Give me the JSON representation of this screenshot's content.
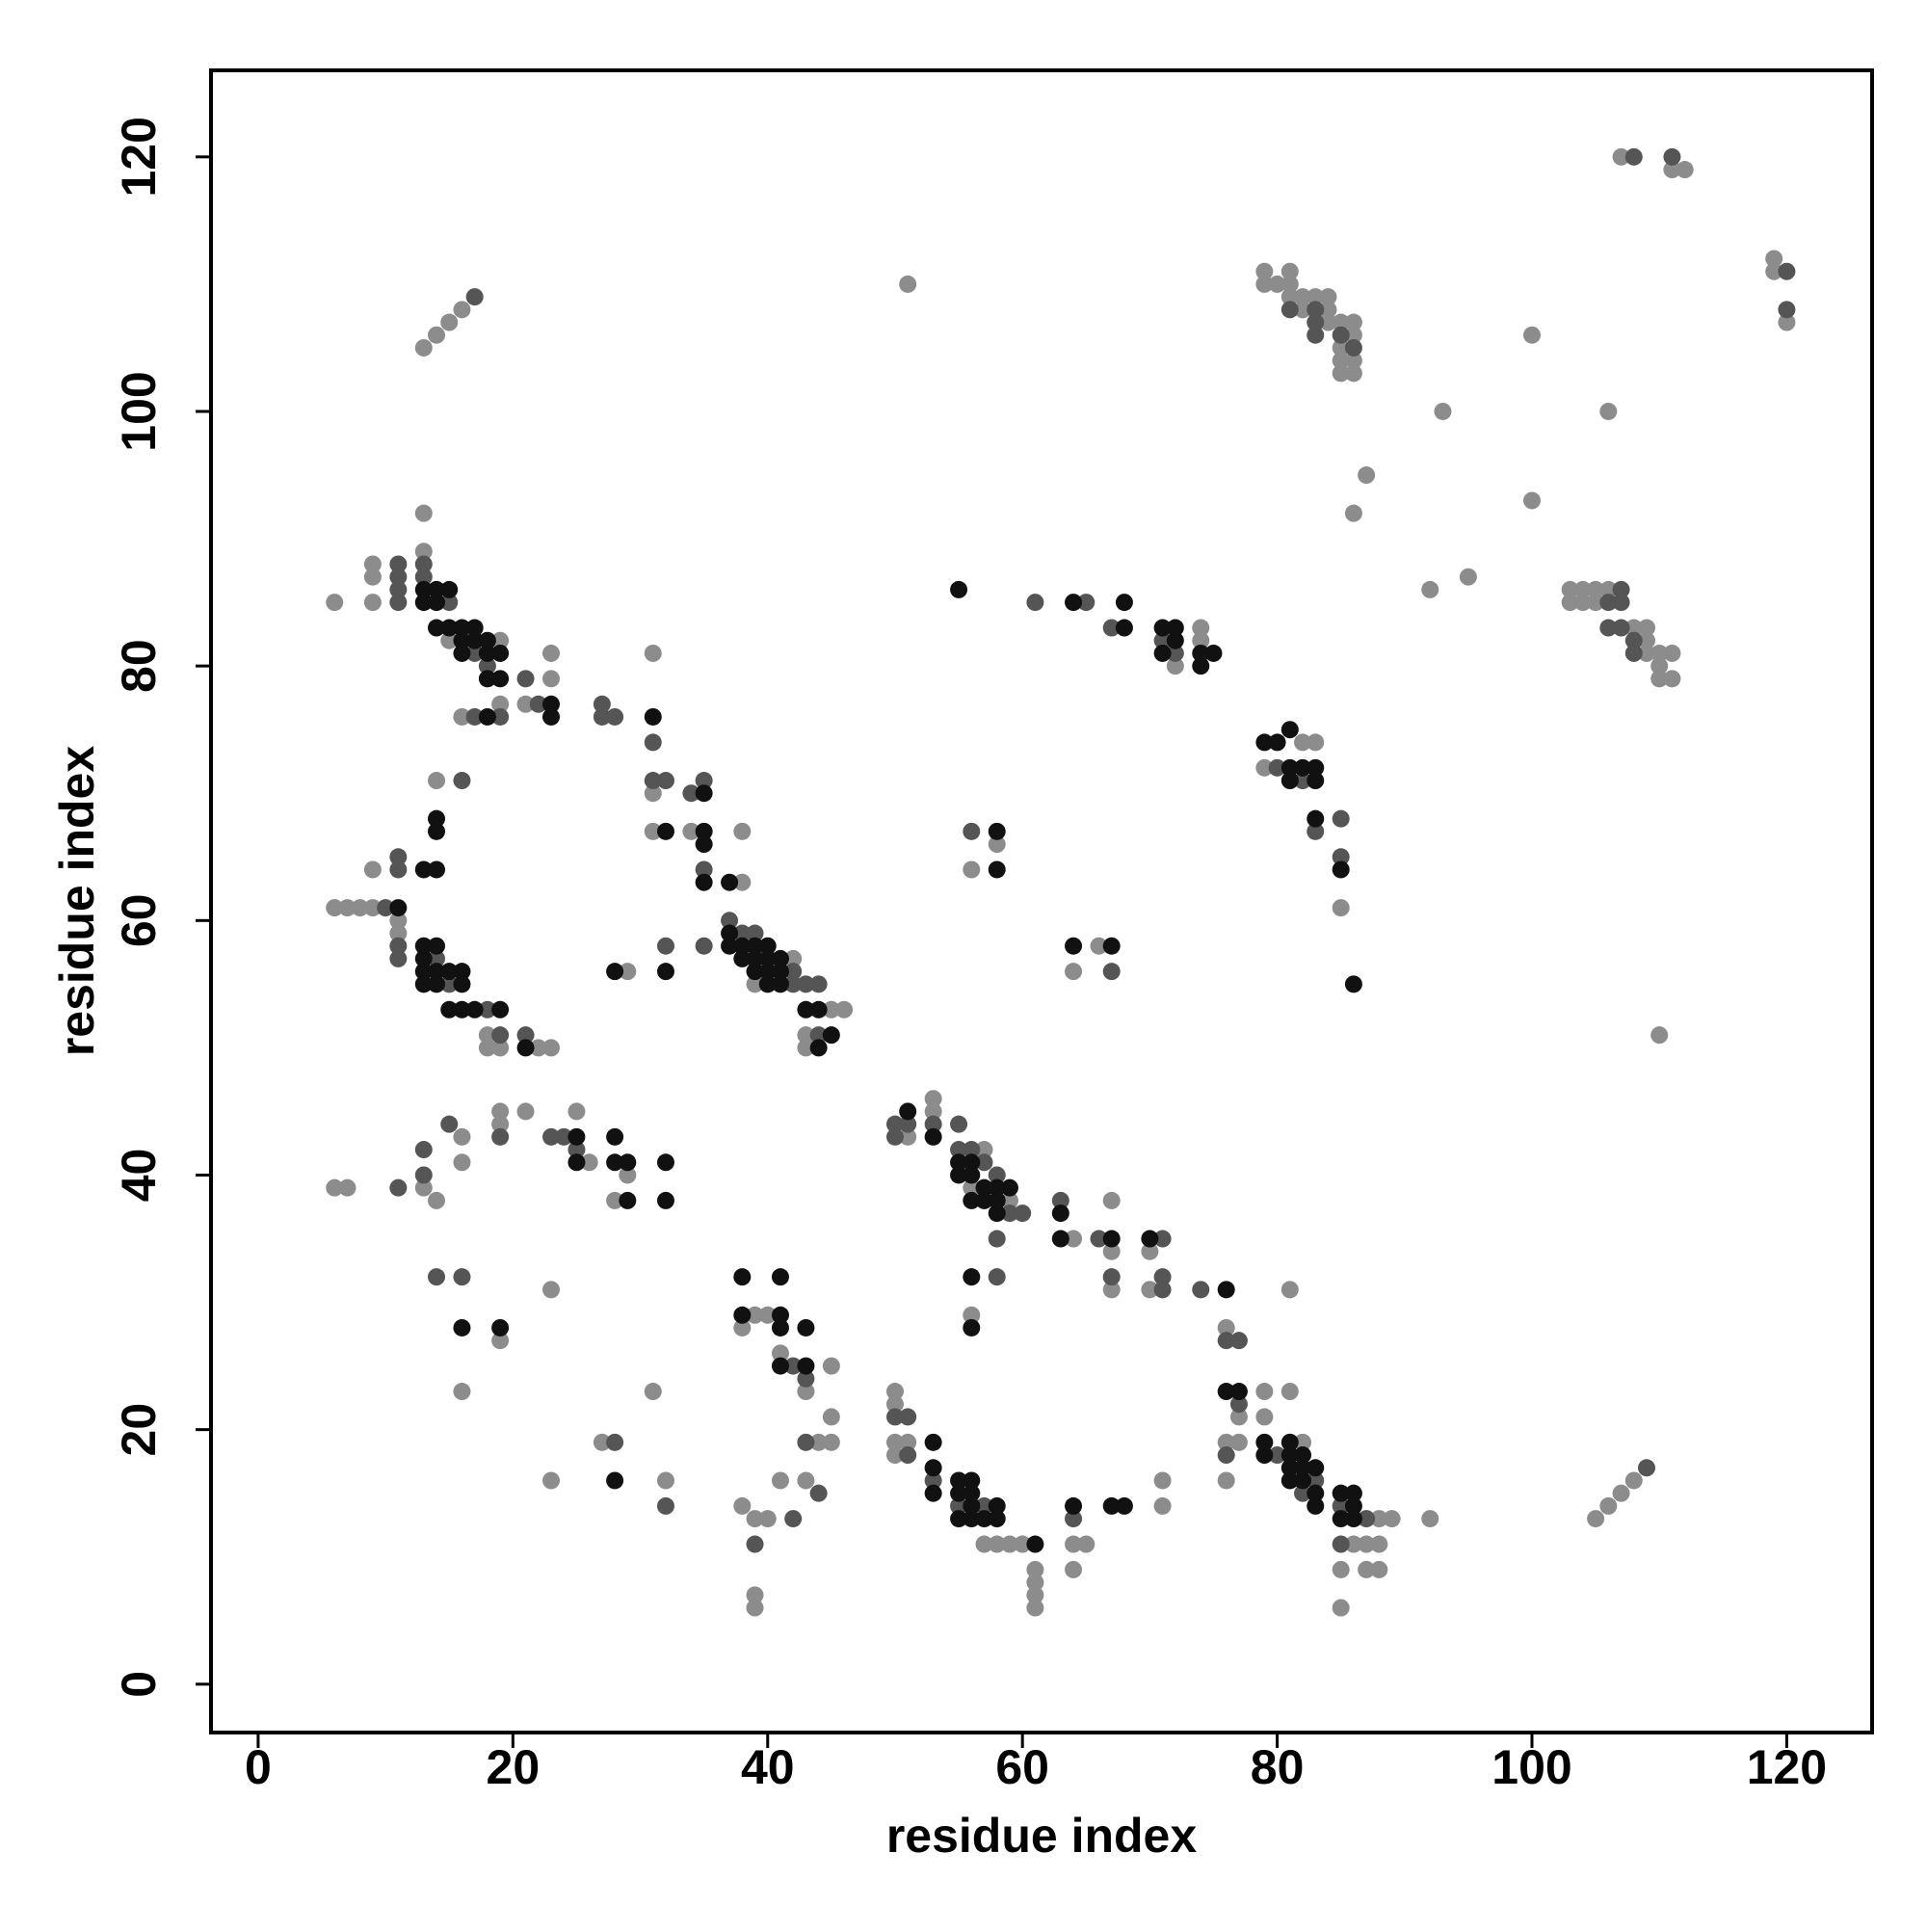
{
  "chart_data": {
    "type": "scatter",
    "xlabel": "residue index",
    "ylabel": "residue index",
    "xlim": [
      -3.7,
      126.7
    ],
    "ylim": [
      -3.8,
      126.8
    ],
    "xticks": [
      0,
      20,
      40,
      60,
      80,
      100,
      120
    ],
    "yticks": [
      0,
      20,
      40,
      60,
      80,
      100,
      120
    ],
    "grid": false,
    "series": [
      {
        "color": "#8c8c8c",
        "x": [
          13,
          14,
          15,
          16,
          13,
          6,
          9,
          9,
          9,
          13,
          15,
          19,
          16,
          19,
          21,
          23,
          23,
          31,
          31,
          31,
          34,
          38,
          38,
          14,
          9,
          6,
          7,
          8,
          9,
          11,
          11,
          18,
          18,
          19,
          22,
          23,
          29,
          42,
          39,
          45,
          46,
          43,
          43,
          6,
          7,
          13,
          14,
          16,
          16,
          19,
          19,
          21,
          25,
          26,
          28,
          29,
          19,
          23,
          16,
          23,
          27,
          31,
          32,
          39,
          40,
          38,
          41,
          43,
          45,
          45,
          44,
          45,
          38,
          39,
          40,
          39,
          39,
          41,
          43,
          51,
          53,
          53,
          57,
          56,
          59,
          64,
          67,
          67,
          70,
          67,
          70,
          56,
          72,
          74,
          74,
          51,
          58,
          56,
          66,
          64,
          82,
          83,
          79,
          85,
          79,
          80,
          81,
          79,
          81,
          81,
          82,
          83,
          82,
          84,
          84,
          84,
          85,
          86,
          86,
          85,
          85,
          86,
          85,
          86,
          87,
          86,
          93,
          100,
          100,
          92,
          95,
          106,
          110,
          103,
          104,
          105,
          106,
          103,
          104,
          105,
          108,
          109,
          109,
          109,
          110,
          111,
          110,
          110,
          111,
          107,
          111,
          112,
          119,
          119,
          120,
          50,
          50,
          50,
          51,
          50,
          57,
          58,
          59,
          60,
          61,
          61,
          61,
          61,
          64,
          65,
          64,
          71,
          71,
          76,
          77,
          76,
          77,
          76,
          79,
          79,
          82,
          81,
          81,
          88,
          89,
          86,
          87,
          88,
          85,
          87,
          88,
          85,
          92,
          105,
          106,
          107,
          108
        ],
        "y": [
          105,
          106,
          107,
          108,
          92,
          85,
          88,
          87,
          85,
          89,
          82,
          82,
          76,
          77,
          77,
          79,
          81,
          81,
          70,
          67,
          67,
          63,
          67,
          71,
          64,
          61,
          61,
          61,
          61,
          60,
          59,
          51,
          50,
          50,
          50,
          50,
          56,
          57,
          55,
          53,
          53,
          51,
          50,
          39,
          39,
          39,
          38,
          43,
          41,
          45,
          44,
          45,
          45,
          41,
          38,
          40,
          27,
          31,
          23,
          16,
          19,
          23,
          16,
          29,
          29,
          28,
          26,
          23,
          25,
          21,
          19,
          19,
          14,
          13,
          13,
          7,
          6,
          16,
          16,
          43,
          46,
          45,
          42,
          39,
          38,
          35,
          38,
          34,
          34,
          31,
          31,
          29,
          80,
          83,
          82,
          110,
          66,
          64,
          58,
          56,
          74,
          74,
          72,
          61,
          111,
          110,
          111,
          110,
          110,
          109,
          109,
          109,
          108,
          109,
          108,
          107,
          107,
          107,
          106,
          105,
          104,
          104,
          103,
          103,
          95,
          92,
          100,
          106,
          93,
          86,
          87,
          100,
          51,
          86,
          86,
          86,
          86,
          85,
          85,
          85,
          83,
          83,
          82,
          81,
          81,
          81,
          80,
          79,
          79,
          120,
          119,
          119,
          112,
          111,
          107,
          23,
          22,
          19,
          19,
          18,
          11,
          11,
          11,
          11,
          9,
          8,
          7,
          6,
          11,
          11,
          9,
          16,
          14,
          28,
          21,
          19,
          19,
          16,
          23,
          21,
          19,
          23,
          31,
          13,
          13,
          11,
          11,
          11,
          9,
          9,
          9,
          6,
          13,
          13,
          14,
          15,
          16
        ]
      },
      {
        "color": "#555555",
        "x": [
          17,
          11,
          11,
          11,
          11,
          13,
          13,
          15,
          17,
          18,
          17,
          19,
          21,
          22,
          27,
          27,
          28,
          31,
          31,
          32,
          34,
          35,
          35,
          16,
          11,
          11,
          10,
          11,
          11,
          14,
          15,
          18,
          19,
          21,
          32,
          35,
          37,
          38,
          39,
          42,
          42,
          43,
          44,
          44,
          11,
          13,
          13,
          15,
          19,
          23,
          24,
          25,
          14,
          16,
          28,
          32,
          42,
          43,
          43,
          39,
          42,
          44,
          50,
          50,
          51,
          53,
          55,
          55,
          56,
          57,
          58,
          59,
          60,
          58,
          63,
          66,
          71,
          67,
          71,
          71,
          74,
          58,
          61,
          65,
          67,
          71,
          72,
          56,
          67,
          80,
          82,
          85,
          83,
          85,
          81,
          83,
          83,
          83,
          85,
          86,
          107,
          106,
          107,
          106,
          107,
          108,
          108,
          108,
          111,
          120,
          120,
          50,
          51,
          51,
          53,
          55,
          57,
          64,
          76,
          77,
          77,
          76,
          80,
          83,
          82,
          85,
          87,
          85,
          109
        ],
        "y": [
          109,
          88,
          87,
          86,
          85,
          88,
          87,
          85,
          81,
          80,
          76,
          76,
          79,
          77,
          77,
          76,
          76,
          74,
          71,
          71,
          70,
          71,
          64,
          71,
          65,
          64,
          61,
          58,
          57,
          57,
          55,
          53,
          51,
          51,
          58,
          58,
          60,
          59,
          59,
          56,
          55,
          55,
          55,
          51,
          39,
          42,
          40,
          44,
          43,
          43,
          43,
          42,
          32,
          32,
          19,
          14,
          25,
          24,
          19,
          11,
          13,
          15,
          44,
          43,
          44,
          44,
          44,
          42,
          42,
          41,
          40,
          37,
          37,
          35,
          38,
          35,
          35,
          32,
          32,
          31,
          31,
          32,
          85,
          85,
          83,
          82,
          81,
          67,
          56,
          72,
          71,
          68,
          67,
          65,
          108,
          108,
          107,
          106,
          106,
          105,
          86,
          85,
          85,
          83,
          83,
          82,
          81,
          120,
          120,
          111,
          108,
          21,
          21,
          18,
          16,
          14,
          14,
          13,
          27,
          27,
          22,
          18,
          18,
          16,
          15,
          14,
          13,
          11,
          17
        ]
      },
      {
        "color": "#111111",
        "x": [
          13,
          13,
          14,
          14,
          15,
          14,
          15,
          16,
          16,
          16,
          17,
          17,
          18,
          18,
          18,
          19,
          19,
          18,
          23,
          23,
          31,
          32,
          35,
          35,
          35,
          35,
          37,
          14,
          14,
          13,
          14,
          11,
          13,
          14,
          13,
          13,
          14,
          15,
          16,
          13,
          14,
          16,
          15,
          16,
          17,
          19,
          21,
          28,
          32,
          37,
          37,
          38,
          39,
          40,
          38,
          39,
          40,
          41,
          39,
          40,
          41,
          40,
          41,
          43,
          44,
          45,
          44,
          25,
          25,
          28,
          28,
          29,
          29,
          32,
          32,
          16,
          19,
          28,
          38,
          41,
          38,
          41,
          41,
          43,
          41,
          43,
          51,
          53,
          55,
          55,
          56,
          56,
          57,
          56,
          57,
          58,
          59,
          58,
          58,
          63,
          63,
          67,
          70,
          76,
          56,
          56,
          55,
          64,
          68,
          68,
          71,
          72,
          72,
          71,
          74,
          75,
          74,
          58,
          58,
          64,
          67,
          79,
          80,
          81,
          81,
          82,
          83,
          81,
          83,
          83,
          85,
          86,
          53,
          53,
          53,
          55,
          56,
          55,
          56,
          56,
          58,
          55,
          56,
          57,
          58,
          61,
          64,
          67,
          68,
          76,
          77,
          79,
          79,
          81,
          81,
          82,
          81,
          82,
          83,
          81,
          82,
          83,
          83,
          85,
          86,
          86,
          85,
          86
        ],
        "y": [
          86,
          85,
          86,
          85,
          86,
          83,
          83,
          83,
          82,
          81,
          83,
          82,
          82,
          81,
          79,
          81,
          79,
          76,
          77,
          76,
          76,
          67,
          70,
          67,
          66,
          63,
          63,
          68,
          67,
          64,
          64,
          61,
          58,
          58,
          57,
          56,
          56,
          56,
          56,
          55,
          55,
          55,
          53,
          53,
          53,
          53,
          50,
          56,
          56,
          59,
          58,
          58,
          58,
          58,
          57,
          57,
          57,
          57,
          56,
          56,
          56,
          55,
          55,
          53,
          53,
          51,
          50,
          43,
          41,
          43,
          41,
          41,
          38,
          41,
          38,
          28,
          28,
          16,
          32,
          32,
          29,
          29,
          28,
          28,
          25,
          25,
          45,
          43,
          41,
          40,
          41,
          40,
          39,
          38,
          38,
          39,
          39,
          38,
          37,
          37,
          35,
          35,
          35,
          31,
          32,
          28,
          86,
          85,
          85,
          83,
          83,
          83,
          82,
          81,
          81,
          81,
          80,
          67,
          64,
          58,
          58,
          74,
          74,
          75,
          72,
          72,
          72,
          71,
          71,
          68,
          64,
          55,
          19,
          17,
          15,
          16,
          16,
          15,
          15,
          14,
          14,
          13,
          13,
          13,
          13,
          11,
          14,
          14,
          14,
          23,
          23,
          19,
          18,
          19,
          18,
          18,
          17,
          17,
          17,
          16,
          16,
          15,
          14,
          15,
          15,
          14,
          13,
          13
        ]
      }
    ]
  }
}
